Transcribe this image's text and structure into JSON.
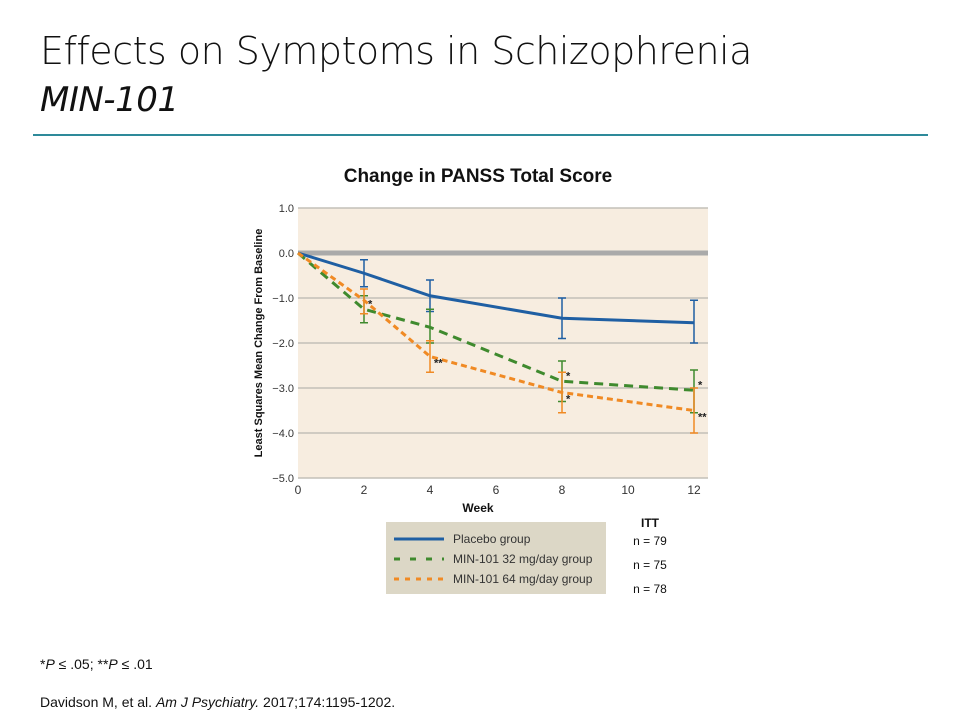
{
  "slide": {
    "title": "Effects on Symptoms in Schizophrenia",
    "subtitle": "MIN-101",
    "footnote_parts": [
      "*",
      "P",
      " ≤ .05; **",
      "P",
      " ≤ .01"
    ],
    "citation_parts": [
      "Davidson M, et al. ",
      "Am J Psychiatry.",
      " 2017;174:1195-1202."
    ],
    "itt": {
      "header": "ITT",
      "counts": [
        "n = 79",
        "n = 75",
        "n = 78"
      ]
    }
  },
  "chart_data": {
    "type": "line",
    "title": "Change in PANSS Total Score",
    "xlabel": "Week",
    "ylabel": "Least Squares Mean Change From Baseline",
    "xlim": [
      0,
      12.4
    ],
    "ylim": [
      -5.0,
      1.0
    ],
    "xticks": [
      0,
      2,
      4,
      6,
      8,
      10,
      12
    ],
    "yticks": [
      1.0,
      0.0,
      -1.0,
      -2.0,
      -3.0,
      -4.0,
      -5.0
    ],
    "ytick_labels": [
      "1.0",
      "0.0",
      "−1.0",
      "−2.0",
      "−3.0",
      "−4.0",
      "−5.0"
    ],
    "grid": true,
    "legend_placement": "bottom",
    "series": [
      {
        "name": "Placebo group",
        "color": "#1f5fa3",
        "style": "solid",
        "x": [
          0,
          2,
          4,
          8,
          12
        ],
        "y": [
          0,
          -0.45,
          -0.95,
          -1.45,
          -1.55
        ],
        "err_low": [
          null,
          -0.75,
          -1.3,
          -1.9,
          -2.0
        ],
        "err_high": [
          null,
          -0.15,
          -0.6,
          -1.0,
          -1.05
        ],
        "annotations": [
          "",
          "",
          "",
          "",
          ""
        ]
      },
      {
        "name": "MIN-101 32 mg/day group",
        "color": "#3f8a2e",
        "style": "dashed",
        "x": [
          0,
          2,
          4,
          8,
          12
        ],
        "y": [
          0,
          -1.25,
          -1.65,
          -2.85,
          -3.05
        ],
        "err_low": [
          null,
          -1.55,
          -2.0,
          -3.3,
          -3.55
        ],
        "err_high": [
          null,
          -0.95,
          -1.25,
          -2.4,
          -2.6
        ],
        "annotations": [
          "",
          "*",
          "",
          "*",
          "*"
        ]
      },
      {
        "name": "MIN-101 64 mg/day group",
        "color": "#f08a24",
        "style": "dotted",
        "x": [
          0,
          2,
          4,
          8,
          12
        ],
        "y": [
          0,
          -1.05,
          -2.3,
          -3.1,
          -3.5
        ],
        "err_low": [
          null,
          -1.35,
          -2.65,
          -3.55,
          -4.0
        ],
        "err_high": [
          null,
          -0.8,
          -1.95,
          -2.65,
          -3.0
        ],
        "annotations": [
          "",
          "",
          "**",
          "*",
          "**"
        ]
      }
    ]
  }
}
